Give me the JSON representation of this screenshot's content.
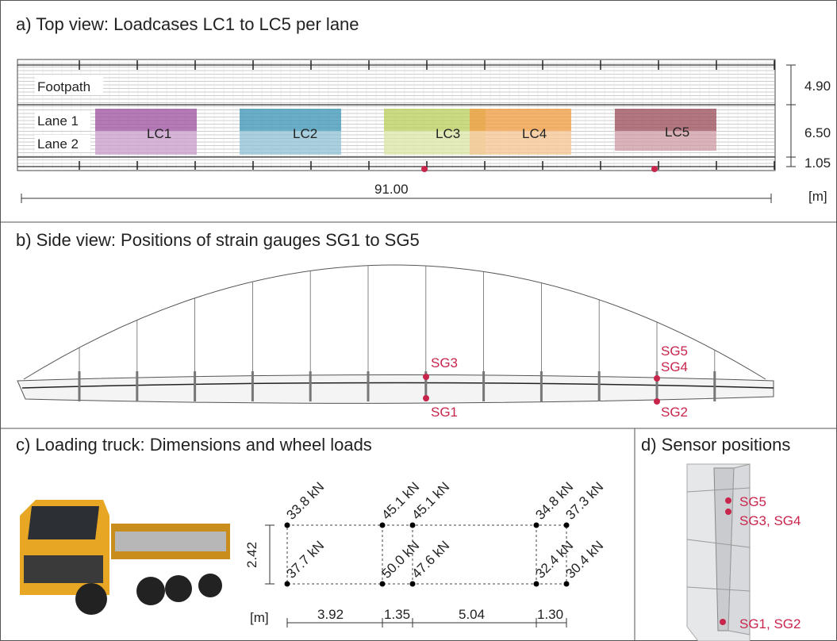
{
  "panels": {
    "a": {
      "title": "a) Top view: Loadcases LC1 to LC5 per lane",
      "lanes": [
        "Footpath",
        "Lane 1",
        "Lane 2"
      ],
      "loadcases": [
        "LC1",
        "LC2",
        "LC3",
        "LC4",
        "LC5"
      ],
      "widths": [
        "4.90",
        "6.50",
        "1.05"
      ],
      "length": "91.00",
      "unit": "[m]"
    },
    "b": {
      "title": "b) Side view: Positions of strain gauges SG1 to SG5",
      "gauges": [
        "SG3",
        "SG1",
        "SG5",
        "SG4",
        "SG2"
      ]
    },
    "c": {
      "title": "c) Loading truck: Dimensions and wheel loads",
      "top_loads": [
        "33.8 kN",
        "45.1 kN",
        "45.1 kN",
        "34.8 kN",
        "37.3 kN"
      ],
      "bottom_loads": [
        "37.7 kN",
        "50.0 kN",
        "47.6 kN",
        "32.4 kN",
        "30.4 kN"
      ],
      "width": "2.42",
      "spacings": [
        "3.92",
        "1.35",
        "5.04",
        "1.30"
      ],
      "unit": "[m]"
    },
    "d": {
      "title": "d) Sensor positions",
      "labels": [
        "SG5",
        "SG3, SG4",
        "SG1, SG2"
      ]
    }
  }
}
